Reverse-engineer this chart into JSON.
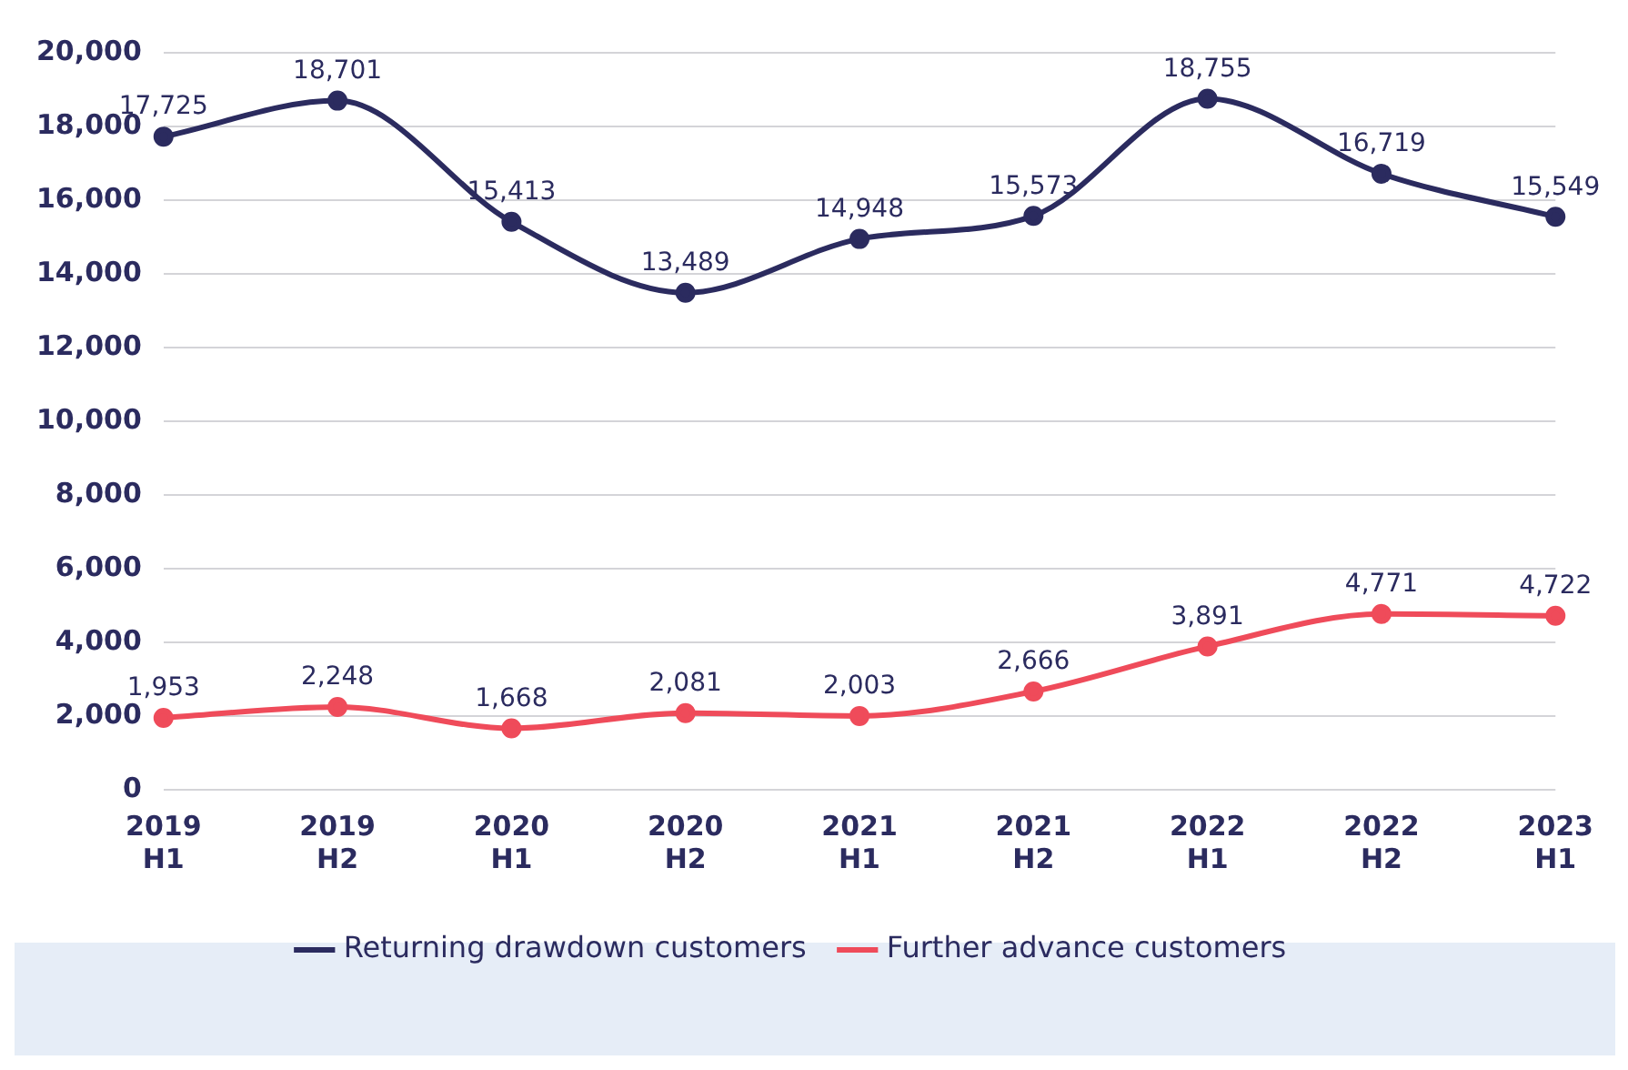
{
  "chart_data": {
    "type": "line",
    "categories": [
      "2019 H1",
      "2019 H2",
      "2020 H1",
      "2020 H2",
      "2021 H1",
      "2021 H2",
      "2022 H1",
      "2022 H2",
      "2023 H1"
    ],
    "series": [
      {
        "name": "Returning drawdown customers",
        "color": "#2b2b5f",
        "values": [
          17725,
          18701,
          15413,
          13489,
          14948,
          15573,
          18755,
          16719,
          15549
        ],
        "value_labels": [
          "17,725",
          "18,701",
          "15,413",
          "13,489",
          "14,948",
          "15,573",
          "18,755",
          "16,719",
          "15,549"
        ]
      },
      {
        "name": "Further advance customers",
        "color": "#ef4b5a",
        "values": [
          1953,
          2248,
          1668,
          2081,
          2003,
          2666,
          3891,
          4771,
          4722
        ],
        "value_labels": [
          "1,953",
          "2,248",
          "1,668",
          "2,081",
          "2,003",
          "2,666",
          "3,891",
          "4,771",
          "4,722"
        ]
      }
    ],
    "ylim": [
      0,
      20000
    ],
    "yticks": [
      0,
      {
        "value": 2000,
        "label": "2,000"
      },
      {
        "value": 4000,
        "label": "4,000"
      },
      {
        "value": 6000,
        "label": "6,000"
      },
      {
        "value": 8000,
        "label": "8,000"
      },
      {
        "value": 10000,
        "label": "10,000"
      },
      {
        "value": 12000,
        "label": "12,000"
      },
      {
        "value": 14000,
        "label": "14,000"
      },
      {
        "value": 16000,
        "label": "16,000"
      },
      {
        "value": 18000,
        "label": "18,000"
      },
      {
        "value": 20000,
        "label": "20,000"
      }
    ],
    "grid": "y",
    "legend": "bottom",
    "marker": "circle"
  }
}
